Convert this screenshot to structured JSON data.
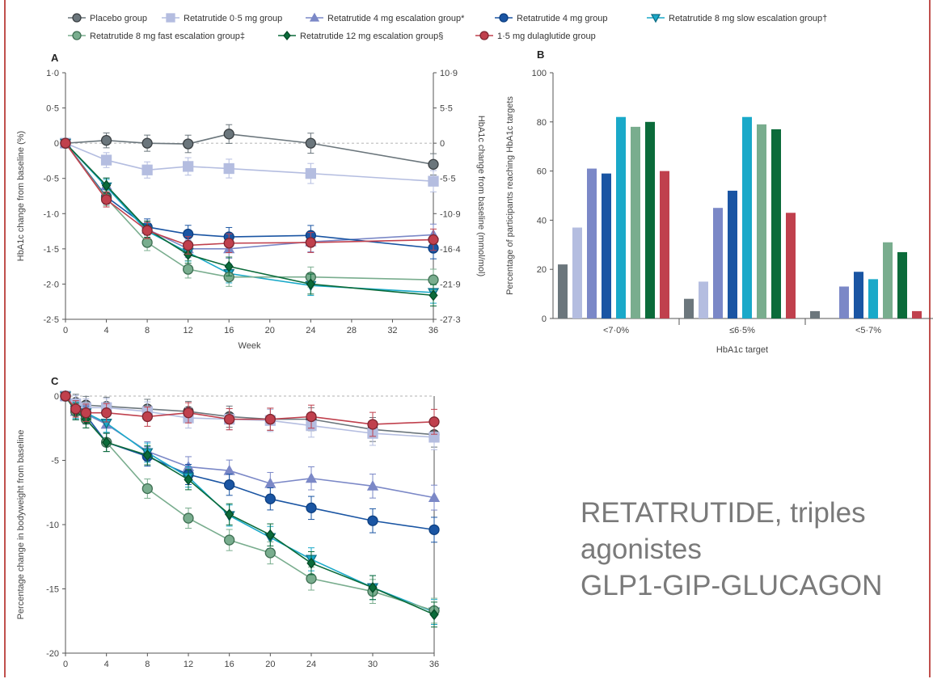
{
  "legend": [
    {
      "id": "placebo",
      "label": "Placebo group",
      "color": "#6b767c",
      "stroke": "#3a3f42",
      "marker": "circle"
    },
    {
      "id": "r05",
      "label": "Retatrutide 0·5 mg group",
      "color": "#b4bde0",
      "stroke": "#b4bde0",
      "marker": "square"
    },
    {
      "id": "r4esc",
      "label": "Retatrutide 4 mg escalation group*",
      "color": "#7b88c7",
      "stroke": "#7b88c7",
      "marker": "triangle"
    },
    {
      "id": "r4",
      "label": "Retatrutide 4 mg group",
      "color": "#1a55a3",
      "stroke": "#0d3f80",
      "marker": "circle"
    },
    {
      "id": "r8slow",
      "label": "Retatrutide 8 mg slow escalation group†",
      "color": "#1aa9c9",
      "stroke": "#0f6f86",
      "marker": "triangle-down"
    },
    {
      "id": "r8fast",
      "label": "Retatrutide 8 mg fast escalation group‡",
      "color": "#79ad8e",
      "stroke": "#3e6e52",
      "marker": "circle"
    },
    {
      "id": "r12",
      "label": "Retatrutide 12 mg escalation group§",
      "color": "#0b6b3a",
      "stroke": "#064a27",
      "marker": "diamond"
    },
    {
      "id": "dula",
      "label": "1·5 mg dulaglutide  group",
      "color": "#c0404d",
      "stroke": "#7d2630",
      "marker": "circle"
    }
  ],
  "caption": {
    "line1": "RETATRUTIDE, triples",
    "line2": "agonistes",
    "line3": "GLP1-GIP-GLUCAGON"
  },
  "chart_data": [
    {
      "panel": "A",
      "type": "line",
      "xlabel": "Week",
      "ylabel": "HbA1c change from baseline (%)",
      "ylabel_right": "HbA1c change from baseline (mmol/mol)",
      "x": [
        0,
        4,
        8,
        12,
        16,
        24,
        36
      ],
      "xticks": [
        "0",
        "4",
        "8",
        "12",
        "16",
        "20",
        "24",
        "28",
        "32",
        "36"
      ],
      "ylim": [
        -2.5,
        1.0
      ],
      "yticks": [
        "1·0",
        "0·5",
        "0",
        "-0·5",
        "-1·0",
        "-1·5",
        "-2·0",
        "-2·5"
      ],
      "yticks_right": [
        "10·9",
        "5·5",
        "0",
        "-5·5",
        "-10·9",
        "-16·4",
        "-21·9",
        "-27·3"
      ],
      "series": [
        {
          "id": "placebo",
          "values": [
            0,
            0.04,
            0.0,
            -0.01,
            0.13,
            0.0,
            -0.3
          ]
        },
        {
          "id": "r05",
          "values": [
            0,
            -0.24,
            -0.38,
            -0.33,
            -0.36,
            -0.43,
            -0.54
          ]
        },
        {
          "id": "r4esc",
          "values": [
            0,
            -0.6,
            -1.22,
            -1.5,
            -1.5,
            -1.4,
            -1.3
          ]
        },
        {
          "id": "r4",
          "values": [
            0,
            -0.76,
            -1.19,
            -1.29,
            -1.33,
            -1.31,
            -1.49
          ]
        },
        {
          "id": "r8slow",
          "values": [
            0,
            -0.62,
            -1.25,
            -1.55,
            -1.85,
            -2.02,
            -2.12
          ]
        },
        {
          "id": "r8fast",
          "values": [
            0,
            -0.78,
            -1.41,
            -1.79,
            -1.9,
            -1.9,
            -1.94
          ]
        },
        {
          "id": "r12",
          "values": [
            0,
            -0.6,
            -1.22,
            -1.58,
            -1.75,
            -2.0,
            -2.16
          ]
        },
        {
          "id": "dula",
          "values": [
            0,
            -0.8,
            -1.24,
            -1.45,
            -1.42,
            -1.41,
            -1.37
          ]
        }
      ]
    },
    {
      "panel": "B",
      "type": "bar",
      "xlabel": "HbA1c target",
      "ylabel": "Percentage of participants reaching HbA1c targets",
      "categories": [
        "<7·0%",
        "≤6·5%",
        "<5·7%"
      ],
      "ylim": [
        0,
        100
      ],
      "yticks": [
        "0",
        "20",
        "40",
        "60",
        "80",
        "100"
      ],
      "series": [
        {
          "id": "placebo",
          "values": [
            22,
            8,
            3
          ]
        },
        {
          "id": "r05",
          "values": [
            37,
            15,
            0
          ]
        },
        {
          "id": "r4esc",
          "values": [
            61,
            45,
            13
          ]
        },
        {
          "id": "r4",
          "values": [
            59,
            52,
            19
          ]
        },
        {
          "id": "r8slow",
          "values": [
            82,
            82,
            16
          ]
        },
        {
          "id": "r8fast",
          "values": [
            78,
            79,
            31
          ]
        },
        {
          "id": "r12",
          "values": [
            80,
            77,
            27
          ]
        },
        {
          "id": "dula",
          "values": [
            60,
            43,
            3
          ]
        }
      ]
    },
    {
      "panel": "C",
      "type": "line",
      "ylabel": "Percentage change in bodyweight from baseline",
      "x": [
        0,
        1,
        2,
        4,
        8,
        12,
        16,
        20,
        24,
        30,
        36
      ],
      "xticks": [
        "0",
        "4",
        "8",
        "12",
        "16",
        "20",
        "24",
        "30",
        "36"
      ],
      "ylim": [
        -20,
        0
      ],
      "yticks": [
        "0",
        "-5",
        "-10",
        "-15",
        "-20"
      ],
      "series": [
        {
          "id": "placebo",
          "values": [
            0,
            -0.5,
            -0.7,
            -0.8,
            -1.0,
            -1.2,
            -1.6,
            -1.8,
            -1.8,
            -2.6,
            -3.0
          ]
        },
        {
          "id": "r05",
          "values": [
            0,
            -0.6,
            -0.9,
            -0.9,
            -1.2,
            -1.7,
            -1.8,
            -1.9,
            -2.3,
            -2.9,
            -3.2
          ]
        },
        {
          "id": "r4esc",
          "values": [
            0,
            -1.2,
            -1.4,
            -2.2,
            -4.3,
            -5.5,
            -5.8,
            -6.8,
            -6.4,
            -7.0,
            -7.9
          ]
        },
        {
          "id": "r4",
          "values": [
            0,
            -1.2,
            -1.5,
            -3.6,
            -4.7,
            -6.1,
            -6.9,
            -8.0,
            -8.7,
            -9.7,
            -10.4
          ]
        },
        {
          "id": "r8slow",
          "values": [
            0,
            -1.1,
            -1.3,
            -2.1,
            -4.4,
            -6.3,
            -9.3,
            -11.0,
            -12.7,
            -14.9,
            -16.8
          ]
        },
        {
          "id": "r8fast",
          "values": [
            0,
            -1.2,
            -1.8,
            -3.6,
            -7.2,
            -9.5,
            -11.2,
            -12.2,
            -14.2,
            -15.2,
            -16.7
          ]
        },
        {
          "id": "r12",
          "values": [
            0,
            -1.2,
            -1.8,
            -3.6,
            -4.6,
            -6.5,
            -9.2,
            -10.8,
            -13.0,
            -14.9,
            -17.0
          ]
        },
        {
          "id": "dula",
          "values": [
            0,
            -1.0,
            -1.3,
            -1.3,
            -1.6,
            -1.3,
            -1.8,
            -1.8,
            -1.6,
            -2.2,
            -2.0
          ]
        }
      ]
    }
  ]
}
